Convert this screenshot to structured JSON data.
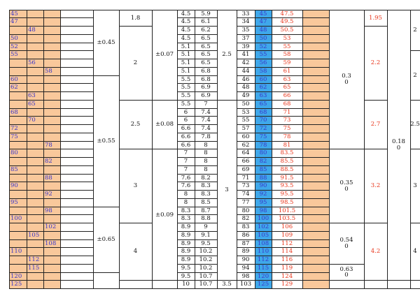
{
  "rows": [
    {
      "g1": "45",
      "g2": "",
      "g3": "",
      "a": "4.5",
      "b": "5.9",
      "n": "33",
      "s": "45",
      "r": "47.5"
    },
    {
      "g1": "47",
      "g2": "",
      "g3": "",
      "a": "4.5",
      "b": "6.1",
      "n": "34",
      "s": "47",
      "r": "49.5"
    },
    {
      "g1": "",
      "g2": "48",
      "g3": "",
      "a": "4.5",
      "b": "6.2",
      "n": "35",
      "s": "48",
      "r": "50.5"
    },
    {
      "g1": "50",
      "g2": "",
      "g3": "",
      "a": "4.5",
      "b": "6.5",
      "n": "37",
      "s": "50",
      "r": "53"
    },
    {
      "g1": "52",
      "g2": "",
      "g3": "",
      "a": "5.1",
      "b": "6.5",
      "n": "39",
      "s": "52",
      "r": "55"
    },
    {
      "g1": "55",
      "g2": "",
      "g3": "",
      "a": "5.1",
      "b": "6.5",
      "n": "41",
      "s": "55",
      "r": "58"
    },
    {
      "g1": "",
      "g2": "56",
      "g3": "",
      "a": "5.1",
      "b": "6.5",
      "n": "42",
      "s": "56",
      "r": "59"
    },
    {
      "g1": "",
      "g2": "",
      "g3": "58",
      "a": "5.1",
      "b": "6.8",
      "n": "44",
      "s": "58",
      "r": "61"
    },
    {
      "g1": "60",
      "g2": "",
      "g3": "",
      "a": "5.5",
      "b": "6.8",
      "n": "46",
      "s": "60",
      "r": "63"
    },
    {
      "g1": "62",
      "g2": "",
      "g3": "",
      "a": "5.5",
      "b": "6.9",
      "n": "48",
      "s": "62",
      "r": "65"
    },
    {
      "g1": "",
      "g2": "63",
      "g3": "",
      "a": "5.5",
      "b": "6.9",
      "n": "49",
      "s": "63",
      "r": "66"
    },
    {
      "g1": "",
      "g2": "65",
      "g3": "",
      "a": "5.5",
      "b": "7",
      "n": "50",
      "s": "65",
      "r": "68"
    },
    {
      "g1": "68",
      "g2": "",
      "g3": "",
      "a": "6",
      "b": "7.4",
      "n": "53",
      "s": "68",
      "r": "71"
    },
    {
      "g1": "",
      "g2": "70",
      "g3": "",
      "a": "6",
      "b": "7.4",
      "n": "55",
      "s": "70",
      "r": "73"
    },
    {
      "g1": "72",
      "g2": "",
      "g3": "",
      "a": "6.6",
      "b": "7.4",
      "n": "57",
      "s": "72",
      "r": "75"
    },
    {
      "g1": "75",
      "g2": "",
      "g3": "",
      "a": "6.6",
      "b": "7.8",
      "n": "60",
      "s": "75",
      "r": "78"
    },
    {
      "g1": "",
      "g2": "",
      "g3": "78",
      "a": "6.6",
      "b": "8",
      "n": "62",
      "s": "78",
      "r": "81"
    },
    {
      "g1": "80",
      "g2": "",
      "g3": "",
      "a": "7",
      "b": "8",
      "n": "64",
      "s": "80",
      "r": "83.5"
    },
    {
      "g1": "",
      "g2": "",
      "g3": "82",
      "a": "7",
      "b": "8",
      "n": "66",
      "s": "82",
      "r": "85.5"
    },
    {
      "g1": "85",
      "g2": "",
      "g3": "",
      "a": "7",
      "b": "8",
      "n": "69",
      "s": "85",
      "r": "88.5"
    },
    {
      "g1": "",
      "g2": "",
      "g3": "88",
      "a": "7.6",
      "b": "8.2",
      "n": "71",
      "s": "88",
      "r": "91.5"
    },
    {
      "g1": "90",
      "g2": "",
      "g3": "",
      "a": "7.6",
      "b": "8.3",
      "n": "73",
      "s": "90",
      "r": "93.5"
    },
    {
      "g1": "",
      "g2": "",
      "g3": "92",
      "a": "8",
      "b": "8.3",
      "n": "74",
      "s": "92",
      "r": "95.5"
    },
    {
      "g1": "95",
      "g2": "",
      "g3": "",
      "a": "8",
      "b": "8.5",
      "n": "77",
      "s": "95",
      "r": "98.5"
    },
    {
      "g1": "",
      "g2": "",
      "g3": "98",
      "a": "8.3",
      "b": "8.7",
      "n": "80",
      "s": "98",
      "r": "101.5"
    },
    {
      "g1": "100",
      "g2": "",
      "g3": "",
      "a": "8.3",
      "b": "8.8",
      "n": "82",
      "s": "100",
      "r": "103.5"
    },
    {
      "g1": "",
      "g2": "",
      "g3": "102",
      "a": "8.9",
      "b": "9",
      "n": "83",
      "s": "102",
      "r": "106"
    },
    {
      "g1": "",
      "g2": "105",
      "g3": "",
      "a": "8.9",
      "b": "9.1",
      "n": "86",
      "s": "105",
      "r": "109"
    },
    {
      "g1": "",
      "g2": "",
      "g3": "108",
      "a": "8.9",
      "b": "9.5",
      "n": "87",
      "s": "108",
      "r": "112"
    },
    {
      "g1": "110",
      "g2": "",
      "g3": "",
      "a": "8.9",
      "b": "10.2",
      "n": "89",
      "s": "110",
      "r": "114"
    },
    {
      "g1": "",
      "g2": "112",
      "g3": "",
      "a": "8.9",
      "b": "10.2",
      "n": "90",
      "s": "112",
      "r": "116"
    },
    {
      "g1": "",
      "g2": "115",
      "g3": "",
      "a": "9.5",
      "b": "10.2",
      "n": "94",
      "s": "115",
      "r": "119"
    },
    {
      "g1": "120",
      "g2": "",
      "g3": "",
      "a": "9.5",
      "b": "10.7",
      "n": "98",
      "s": "120",
      "r": "124"
    },
    {
      "g1": "125",
      "g2": "",
      "g3": "",
      "a": "10",
      "b": "10.7",
      "n": "103",
      "s": "125",
      "r": "129"
    }
  ],
  "merged": {
    "col5": [
      {
        "from": 0,
        "to": 8,
        "text": "±0.45"
      },
      {
        "from": 8,
        "to": 24,
        "text": "±0.55"
      },
      {
        "from": 24,
        "to": 32,
        "text": "±0.65"
      }
    ],
    "col6": [
      {
        "from": 0,
        "to": 2,
        "text": "1.8"
      },
      {
        "from": 2,
        "to": 11,
        "text": "2"
      },
      {
        "from": 11,
        "to": 17,
        "text": "2.5"
      },
      {
        "from": 17,
        "to": 26,
        "text": "3"
      },
      {
        "from": 26,
        "to": 33,
        "text": "4"
      }
    ],
    "col7": [
      {
        "from": 0,
        "to": 11,
        "text": "±0.07"
      },
      {
        "from": 11,
        "to": 17,
        "text": "±0.08"
      },
      {
        "from": 17,
        "to": 33,
        "text": "±0.09"
      }
    ],
    "col10": [
      {
        "from": 0,
        "to": 11,
        "text": "2.5"
      },
      {
        "from": 11,
        "to": 33,
        "text": "3"
      }
    ],
    "col15": [
      {
        "from": 0,
        "to": 17,
        "text": "0.3\n0"
      },
      {
        "from": 17,
        "to": 26,
        "text": "0.35\n0"
      },
      {
        "from": 26,
        "to": 31,
        "text": "0.54\n0"
      },
      {
        "from": 31,
        "to": 33,
        "text": "0.63\n0"
      }
    ],
    "col16": [
      {
        "from": 0,
        "to": 2,
        "text": "1.95"
      },
      {
        "from": 2,
        "to": 11,
        "text": "2.2"
      },
      {
        "from": 11,
        "to": 17,
        "text": "2.7"
      },
      {
        "from": 17,
        "to": 26,
        "text": "3.2"
      },
      {
        "from": 26,
        "to": 33,
        "text": "4.2"
      }
    ],
    "col18": [
      {
        "from": 0,
        "to": 33,
        "text": "0.18\n0"
      }
    ],
    "col19": [
      {
        "from": 0,
        "to": 5,
        "text": "2"
      },
      {
        "from": 5,
        "to": 11,
        "text": "2"
      },
      {
        "from": 11,
        "to": 17,
        "text": "2.5"
      },
      {
        "from": 17,
        "to": 26,
        "text": "3"
      },
      {
        "from": 26,
        "to": 33,
        "text": "4"
      }
    ]
  },
  "extra_cells": {
    "col10_last": "3.5"
  },
  "colors": {
    "orange": "#f9c89b",
    "blue_cell": "#3fa8ea",
    "blue_text": "#3a36c8",
    "red_text": "#e8361c"
  }
}
